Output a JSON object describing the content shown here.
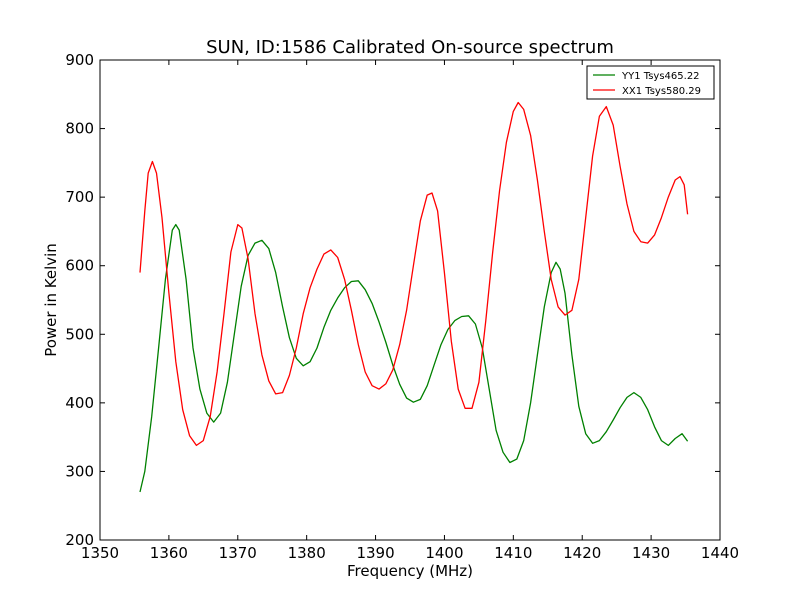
{
  "chart_data": {
    "type": "line",
    "title": "SUN, ID:1586 Calibrated On-source spectrum",
    "xlabel": "Frequency (MHz)",
    "ylabel": "Power in Kelvin",
    "xlim": [
      1350,
      1440
    ],
    "ylim": [
      200,
      900
    ],
    "xticks": [
      1350,
      1360,
      1370,
      1380,
      1390,
      1400,
      1410,
      1420,
      1430,
      1440
    ],
    "yticks": [
      200,
      300,
      400,
      500,
      600,
      700,
      800,
      900
    ],
    "grid": false,
    "legend_position": "top-right",
    "series": [
      {
        "name": "YY1 Tsys465.22",
        "color": "#008000",
        "points": [
          [
            1355.8,
            270
          ],
          [
            1356.5,
            300
          ],
          [
            1357.5,
            380
          ],
          [
            1358.5,
            480
          ],
          [
            1359.5,
            580
          ],
          [
            1360.5,
            652
          ],
          [
            1361.0,
            660
          ],
          [
            1361.5,
            652
          ],
          [
            1362.5,
            580
          ],
          [
            1363.5,
            480
          ],
          [
            1364.5,
            420
          ],
          [
            1365.5,
            385
          ],
          [
            1366.5,
            372
          ],
          [
            1367.5,
            385
          ],
          [
            1368.5,
            430
          ],
          [
            1369.5,
            500
          ],
          [
            1370.5,
            570
          ],
          [
            1371.5,
            615
          ],
          [
            1372.5,
            633
          ],
          [
            1373.5,
            637
          ],
          [
            1374.5,
            625
          ],
          [
            1375.5,
            590
          ],
          [
            1376.5,
            540
          ],
          [
            1377.5,
            495
          ],
          [
            1378.5,
            465
          ],
          [
            1379.5,
            454
          ],
          [
            1380.5,
            460
          ],
          [
            1381.5,
            480
          ],
          [
            1382.5,
            510
          ],
          [
            1383.5,
            535
          ],
          [
            1384.5,
            553
          ],
          [
            1385.5,
            568
          ],
          [
            1386.5,
            577
          ],
          [
            1387.5,
            578
          ],
          [
            1388.5,
            565
          ],
          [
            1389.5,
            545
          ],
          [
            1390.5,
            518
          ],
          [
            1391.5,
            488
          ],
          [
            1392.5,
            455
          ],
          [
            1393.5,
            427
          ],
          [
            1394.5,
            407
          ],
          [
            1395.5,
            401
          ],
          [
            1396.5,
            405
          ],
          [
            1397.5,
            425
          ],
          [
            1398.5,
            455
          ],
          [
            1399.5,
            485
          ],
          [
            1400.5,
            507
          ],
          [
            1401.5,
            520
          ],
          [
            1402.5,
            526
          ],
          [
            1403.5,
            527
          ],
          [
            1404.5,
            515
          ],
          [
            1405.5,
            480
          ],
          [
            1406.5,
            420
          ],
          [
            1407.5,
            360
          ],
          [
            1408.5,
            328
          ],
          [
            1409.5,
            313
          ],
          [
            1410.5,
            318
          ],
          [
            1411.5,
            345
          ],
          [
            1412.5,
            400
          ],
          [
            1413.5,
            470
          ],
          [
            1414.5,
            540
          ],
          [
            1415.5,
            590
          ],
          [
            1416.2,
            605
          ],
          [
            1416.8,
            595
          ],
          [
            1417.5,
            560
          ],
          [
            1418.5,
            470
          ],
          [
            1419.5,
            395
          ],
          [
            1420.5,
            355
          ],
          [
            1421.5,
            341
          ],
          [
            1422.5,
            345
          ],
          [
            1423.5,
            358
          ],
          [
            1424.5,
            375
          ],
          [
            1425.5,
            393
          ],
          [
            1426.5,
            408
          ],
          [
            1427.5,
            415
          ],
          [
            1428.5,
            408
          ],
          [
            1429.5,
            390
          ],
          [
            1430.5,
            365
          ],
          [
            1431.5,
            345
          ],
          [
            1432.5,
            338
          ],
          [
            1433.5,
            348
          ],
          [
            1434.5,
            355
          ],
          [
            1435.3,
            344
          ]
        ]
      },
      {
        "name": "XX1 Tsys580.29",
        "color": "#ff0000",
        "points": [
          [
            1355.8,
            590
          ],
          [
            1356.5,
            680
          ],
          [
            1357.0,
            735
          ],
          [
            1357.6,
            752
          ],
          [
            1358.2,
            735
          ],
          [
            1359.0,
            670
          ],
          [
            1360.0,
            560
          ],
          [
            1361.0,
            460
          ],
          [
            1362.0,
            390
          ],
          [
            1363.0,
            352
          ],
          [
            1364.0,
            338
          ],
          [
            1365.0,
            345
          ],
          [
            1366.0,
            380
          ],
          [
            1367.0,
            445
          ],
          [
            1368.0,
            530
          ],
          [
            1369.0,
            620
          ],
          [
            1370.0,
            660
          ],
          [
            1370.6,
            655
          ],
          [
            1371.5,
            610
          ],
          [
            1372.5,
            530
          ],
          [
            1373.5,
            470
          ],
          [
            1374.5,
            432
          ],
          [
            1375.5,
            413
          ],
          [
            1376.5,
            415
          ],
          [
            1377.5,
            440
          ],
          [
            1378.5,
            480
          ],
          [
            1379.5,
            530
          ],
          [
            1380.5,
            568
          ],
          [
            1381.5,
            595
          ],
          [
            1382.5,
            617
          ],
          [
            1383.5,
            623
          ],
          [
            1384.5,
            612
          ],
          [
            1385.5,
            580
          ],
          [
            1386.5,
            535
          ],
          [
            1387.5,
            485
          ],
          [
            1388.5,
            445
          ],
          [
            1389.5,
            425
          ],
          [
            1390.5,
            420
          ],
          [
            1391.5,
            428
          ],
          [
            1392.5,
            448
          ],
          [
            1393.5,
            485
          ],
          [
            1394.5,
            535
          ],
          [
            1395.5,
            600
          ],
          [
            1396.5,
            665
          ],
          [
            1397.5,
            703
          ],
          [
            1398.2,
            706
          ],
          [
            1399.0,
            680
          ],
          [
            1400.0,
            590
          ],
          [
            1401.0,
            490
          ],
          [
            1402.0,
            420
          ],
          [
            1403.0,
            392
          ],
          [
            1404.0,
            392
          ],
          [
            1405.0,
            430
          ],
          [
            1406.0,
            520
          ],
          [
            1407.0,
            620
          ],
          [
            1408.0,
            710
          ],
          [
            1409.0,
            780
          ],
          [
            1410.0,
            825
          ],
          [
            1410.7,
            838
          ],
          [
            1411.5,
            828
          ],
          [
            1412.5,
            790
          ],
          [
            1413.5,
            725
          ],
          [
            1414.5,
            650
          ],
          [
            1415.5,
            580
          ],
          [
            1416.5,
            540
          ],
          [
            1417.5,
            528
          ],
          [
            1418.5,
            535
          ],
          [
            1419.5,
            580
          ],
          [
            1420.5,
            670
          ],
          [
            1421.5,
            760
          ],
          [
            1422.5,
            818
          ],
          [
            1423.5,
            832
          ],
          [
            1424.5,
            805
          ],
          [
            1425.5,
            745
          ],
          [
            1426.5,
            690
          ],
          [
            1427.5,
            650
          ],
          [
            1428.5,
            635
          ],
          [
            1429.5,
            633
          ],
          [
            1430.5,
            645
          ],
          [
            1431.5,
            670
          ],
          [
            1432.5,
            700
          ],
          [
            1433.5,
            725
          ],
          [
            1434.2,
            730
          ],
          [
            1434.8,
            718
          ],
          [
            1435.3,
            675
          ]
        ]
      }
    ]
  }
}
